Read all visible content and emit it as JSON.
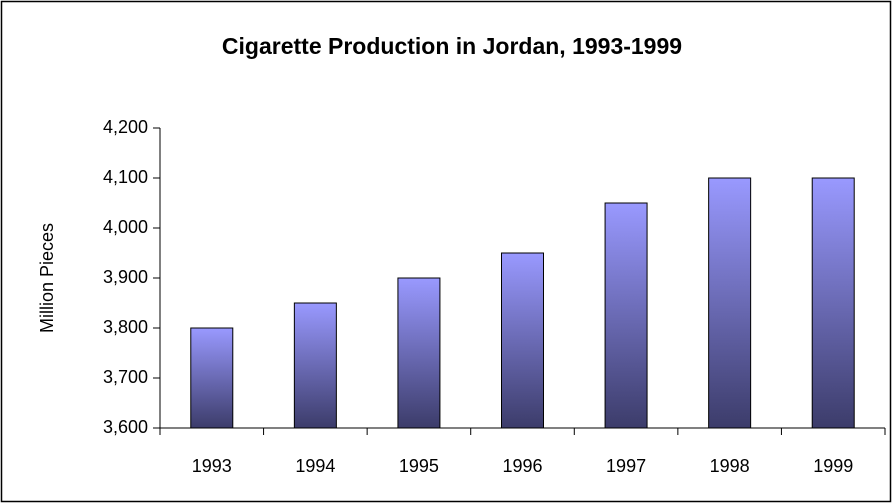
{
  "chart_data": {
    "type": "bar",
    "title": "Cigarette Production in Jordan, 1993-1999",
    "y_label": "Million Pieces",
    "categories": [
      "1993",
      "1994",
      "1995",
      "1996",
      "1997",
      "1998",
      "1999"
    ],
    "values": [
      3800,
      3850,
      3900,
      3950,
      4050,
      4100,
      4100
    ],
    "color": "#9999ff",
    "gradient_end": "#3c3c6a",
    "ylim": [
      3600,
      4200
    ],
    "yticks": [
      {
        "value": 3600,
        "label": "3,600"
      },
      {
        "value": 3700,
        "label": "3,700"
      },
      {
        "value": 3800,
        "label": "3,800"
      },
      {
        "value": 3900,
        "label": "3,900"
      },
      {
        "value": 4000,
        "label": "4,000"
      },
      {
        "value": 4100,
        "label": "4,100"
      },
      {
        "value": 4200,
        "label": "4,200"
      }
    ],
    "grid": false
  }
}
